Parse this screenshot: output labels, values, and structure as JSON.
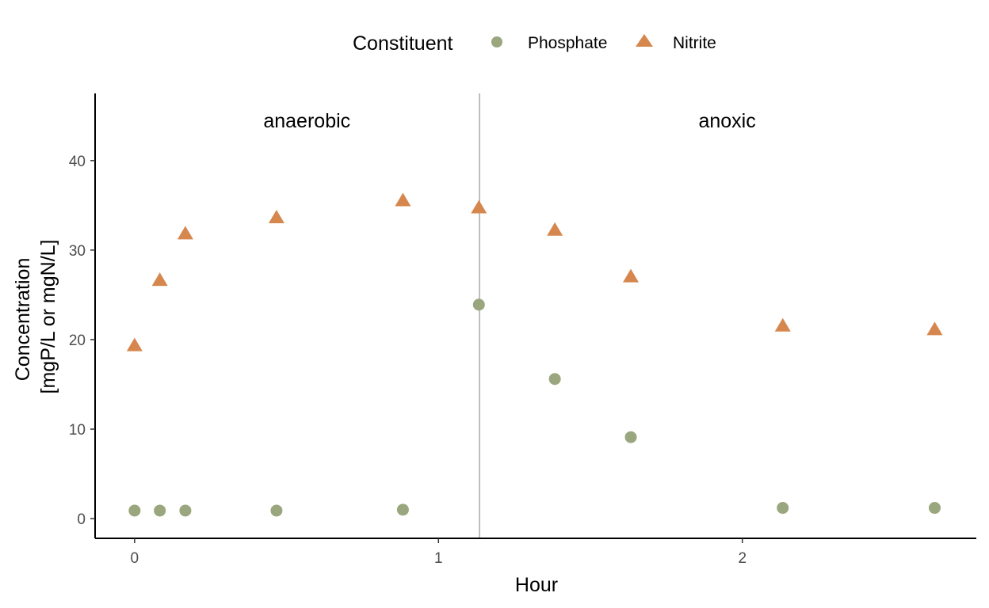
{
  "colors": {
    "phosphate": "#9aa67d",
    "nitrite": "#d5874e",
    "phase_line": "#bdbdbd",
    "axis": "#000000"
  },
  "legend": {
    "title": "Constituent",
    "placement": "top"
  },
  "chart_data": {
    "type": "scatter",
    "title": "",
    "xlabel": "Hour",
    "ylabel_lines": [
      "Concentration",
      "[mgP/L or mgN/L]"
    ],
    "xlim": [
      -0.13,
      2.77
    ],
    "ylim": [
      -2.2,
      47.5
    ],
    "x_ticks": [
      0,
      1,
      2
    ],
    "y_ticks": [
      0,
      10,
      20,
      30,
      40
    ],
    "grid": false,
    "phase_boundary_x": 1.135,
    "annotations": [
      {
        "text": "anaerobic",
        "x": 0.567,
        "y": 44.5
      },
      {
        "text": "anoxic",
        "x": 1.95,
        "y": 44.5
      }
    ],
    "series": [
      {
        "name": "Phosphate",
        "marker": "circle",
        "color": "#9aa67d",
        "x": [
          0,
          0.083,
          0.167,
          0.467,
          0.883,
          1.133,
          1.383,
          1.633,
          2.133,
          2.633
        ],
        "y": [
          0.9,
          0.9,
          0.9,
          0.9,
          1.0,
          23.9,
          15.6,
          9.1,
          1.2,
          1.2
        ]
      },
      {
        "name": "Nitrite",
        "marker": "triangle",
        "color": "#d5874e",
        "x": [
          0,
          0.083,
          0.167,
          0.467,
          0.883,
          1.133,
          1.383,
          1.633,
          2.133,
          2.633
        ],
        "y": [
          19.3,
          26.6,
          31.8,
          33.6,
          35.5,
          34.7,
          32.2,
          27.0,
          21.5,
          21.1
        ]
      }
    ]
  }
}
